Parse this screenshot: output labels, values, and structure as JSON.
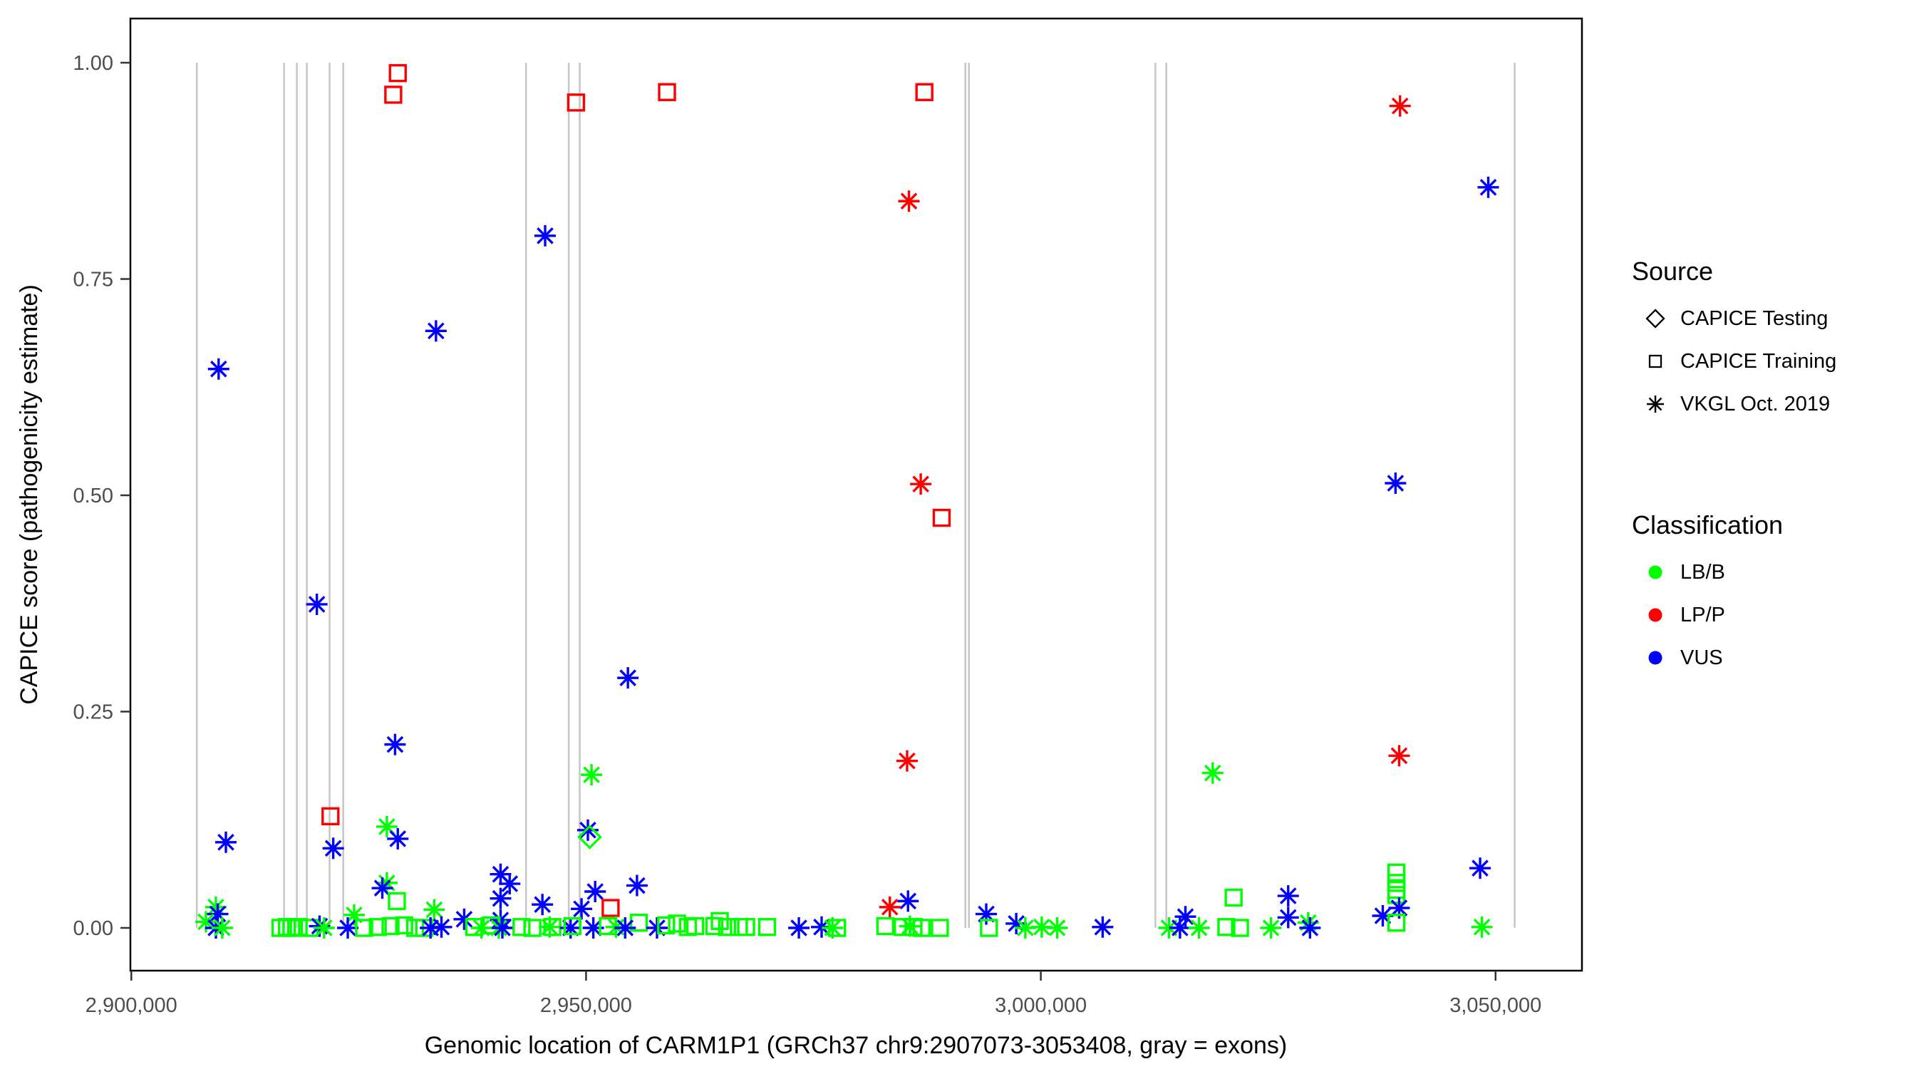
{
  "chart_data": {
    "type": "scatter",
    "xlabel": "Genomic location of CARM1P1 (GRCh37 chr9:2907073-3053408, gray = exons)",
    "ylabel": "CAPICE score (pathogenicity estimate)",
    "xlim": [
      2899900,
      3059500
    ],
    "ylim": [
      0,
      1
    ],
    "grid": "off",
    "x_ticks": [
      {
        "label": "2,900,000",
        "value": 2900000
      },
      {
        "label": "2,950,000",
        "value": 2950000
      },
      {
        "label": "3,000,000",
        "value": 3000000
      },
      {
        "label": "3,050,000",
        "value": 3050000
      }
    ],
    "y_ticks": [
      {
        "label": "0.00",
        "value": 0.0
      },
      {
        "label": "0.25",
        "value": 0.25
      },
      {
        "label": "0.50",
        "value": 0.5
      },
      {
        "label": "0.75",
        "value": 0.75
      },
      {
        "label": "1.00",
        "value": 1.0
      }
    ],
    "exon_line_positions": [
      2907200,
      2916800,
      2918200,
      2919300,
      2921800,
      2923300,
      2943400,
      2948100,
      2949300,
      2991700,
      2992100,
      3012600,
      3013800,
      3052100
    ],
    "exon_line_note": "gray vertical lines spanning score 0 to 1 mark exons",
    "marker_codes": {
      "T": "CAPICE Testing (open diamond)",
      "R": "CAPICE Training (open square)",
      "V": "VKGL Oct. 2019 (asterisk)"
    },
    "class_codes": {
      "B": "LB/B",
      "P": "LP/P",
      "U": "VUS"
    },
    "points_format": [
      "genomic_position",
      "capice_score",
      "marker_code",
      "class_code"
    ],
    "points": [
      [
        2929300,
        0.988,
        "R",
        "P"
      ],
      [
        2928800,
        0.963,
        "R",
        "P"
      ],
      [
        2948900,
        0.954,
        "R",
        "P"
      ],
      [
        2958900,
        0.966,
        "R",
        "P"
      ],
      [
        2987200,
        0.966,
        "R",
        "P"
      ],
      [
        3039500,
        0.95,
        "V",
        "P"
      ],
      [
        3049200,
        0.856,
        "V",
        "U"
      ],
      [
        2985500,
        0.84,
        "V",
        "P"
      ],
      [
        2945500,
        0.8,
        "V",
        "U"
      ],
      [
        2933500,
        0.69,
        "V",
        "U"
      ],
      [
        2909600,
        0.646,
        "V",
        "U"
      ],
      [
        3039000,
        0.514,
        "V",
        "U"
      ],
      [
        2986800,
        0.513,
        "V",
        "P"
      ],
      [
        2989100,
        0.474,
        "R",
        "P"
      ],
      [
        2920400,
        0.374,
        "V",
        "U"
      ],
      [
        2954600,
        0.289,
        "V",
        "U"
      ],
      [
        2929000,
        0.212,
        "V",
        "U"
      ],
      [
        3039400,
        0.199,
        "V",
        "P"
      ],
      [
        2985300,
        0.193,
        "V",
        "P"
      ],
      [
        3018900,
        0.179,
        "V",
        "B"
      ],
      [
        2950600,
        0.177,
        "V",
        "B"
      ],
      [
        2921900,
        0.129,
        "R",
        "P"
      ],
      [
        2928100,
        0.117,
        "V",
        "B"
      ],
      [
        2950200,
        0.113,
        "V",
        "U"
      ],
      [
        2950400,
        0.105,
        "T",
        "B"
      ],
      [
        2929300,
        0.103,
        "V",
        "U"
      ],
      [
        2910400,
        0.099,
        "V",
        "U"
      ],
      [
        2922200,
        0.092,
        "V",
        "U"
      ],
      [
        3048300,
        0.069,
        "V",
        "U"
      ],
      [
        3039100,
        0.064,
        "R",
        "B"
      ],
      [
        2940600,
        0.062,
        "V",
        "U"
      ],
      [
        2928100,
        0.052,
        "V",
        "B"
      ],
      [
        3039100,
        0.052,
        "R",
        "B"
      ],
      [
        2941600,
        0.051,
        "V",
        "U"
      ],
      [
        2955600,
        0.049,
        "V",
        "U"
      ],
      [
        2927600,
        0.046,
        "V",
        "U"
      ],
      [
        3039100,
        0.044,
        "R",
        "B"
      ],
      [
        2951000,
        0.042,
        "V",
        "U"
      ],
      [
        3039100,
        0.038,
        "R",
        "B"
      ],
      [
        3027200,
        0.037,
        "V",
        "U"
      ],
      [
        3021200,
        0.035,
        "R",
        "B"
      ],
      [
        2940600,
        0.034,
        "V",
        "U"
      ],
      [
        2985400,
        0.031,
        "V",
        "U"
      ],
      [
        2929200,
        0.031,
        "R",
        "B"
      ],
      [
        2945200,
        0.027,
        "V",
        "U"
      ],
      [
        2983400,
        0.024,
        "V",
        "P"
      ],
      [
        2909300,
        0.024,
        "V",
        "B"
      ],
      [
        2952700,
        0.023,
        "R",
        "P"
      ],
      [
        3039400,
        0.023,
        "V",
        "U"
      ],
      [
        2949500,
        0.022,
        "V",
        "U"
      ],
      [
        2933300,
        0.021,
        "V",
        "B"
      ],
      [
        2909500,
        0.016,
        "V",
        "U"
      ],
      [
        2994000,
        0.016,
        "V",
        "U"
      ],
      [
        2924500,
        0.015,
        "V",
        "B"
      ],
      [
        3037600,
        0.014,
        "V",
        "U"
      ],
      [
        3015900,
        0.013,
        "V",
        "U"
      ],
      [
        3027200,
        0.012,
        "V",
        "U"
      ],
      [
        2936600,
        0.01,
        "V",
        "U"
      ],
      [
        2940600,
        0.009,
        "V",
        "U"
      ],
      [
        2964700,
        0.008,
        "R",
        "B"
      ],
      [
        2908200,
        0.007,
        "V",
        "B"
      ],
      [
        2955800,
        0.006,
        "R",
        "B"
      ],
      [
        3029400,
        0.006,
        "V",
        "B"
      ],
      [
        3039100,
        0.006,
        "R",
        "B"
      ],
      [
        2997300,
        0.005,
        "V",
        "U"
      ],
      [
        2960000,
        0.005,
        "R",
        "B"
      ],
      [
        2909300,
        0.0,
        "V",
        "U"
      ],
      [
        2910000,
        0.0,
        "V",
        "B"
      ],
      [
        2916400,
        0.0,
        "R",
        "B"
      ],
      [
        2917100,
        0.001,
        "R",
        "B"
      ],
      [
        2917600,
        0.0,
        "R",
        "B"
      ],
      [
        2918400,
        0.001,
        "R",
        "B"
      ],
      [
        2919600,
        0.0,
        "R",
        "B"
      ],
      [
        2920700,
        0.002,
        "V",
        "U"
      ],
      [
        2921200,
        0.0,
        "V",
        "B"
      ],
      [
        2923800,
        0.0,
        "V",
        "U"
      ],
      [
        2925600,
        0.0,
        "R",
        "B"
      ],
      [
        2927100,
        0.001,
        "R",
        "B"
      ],
      [
        2928500,
        0.002,
        "R",
        "B"
      ],
      [
        2930000,
        0.003,
        "R",
        "B"
      ],
      [
        2931200,
        0.0,
        "R",
        "B"
      ],
      [
        2932200,
        0.0,
        "R",
        "B"
      ],
      [
        2932900,
        0.0,
        "V",
        "U"
      ],
      [
        2934100,
        0.001,
        "V",
        "U"
      ],
      [
        2937700,
        0.001,
        "R",
        "B"
      ],
      [
        2938500,
        0.0,
        "V",
        "B"
      ],
      [
        2939600,
        0.003,
        "R",
        "B"
      ],
      [
        2940400,
        0.0,
        "V",
        "B"
      ],
      [
        2940800,
        0.0,
        "V",
        "U"
      ],
      [
        2942900,
        0.001,
        "R",
        "B"
      ],
      [
        2944100,
        0.0,
        "R",
        "B"
      ],
      [
        2946000,
        0.001,
        "V",
        "B"
      ],
      [
        2946300,
        0.001,
        "R",
        "B"
      ],
      [
        2948300,
        0.0,
        "V",
        "U"
      ],
      [
        2948500,
        0.002,
        "R",
        "B"
      ],
      [
        2950800,
        0.0,
        "V",
        "U"
      ],
      [
        2952400,
        0.002,
        "R",
        "B"
      ],
      [
        2953300,
        0.001,
        "V",
        "B"
      ],
      [
        2954300,
        0.0,
        "V",
        "U"
      ],
      [
        2957800,
        0.0,
        "V",
        "U"
      ],
      [
        2958800,
        0.003,
        "R",
        "B"
      ],
      [
        2961200,
        0.001,
        "R",
        "B"
      ],
      [
        2962000,
        0.002,
        "R",
        "B"
      ],
      [
        2964100,
        0.002,
        "R",
        "B"
      ],
      [
        2965500,
        0.001,
        "R",
        "B"
      ],
      [
        2966800,
        0.001,
        "R",
        "B"
      ],
      [
        2967600,
        0.001,
        "R",
        "B"
      ],
      [
        2969900,
        0.001,
        "R",
        "B"
      ],
      [
        2973400,
        0.0,
        "V",
        "U"
      ],
      [
        2975900,
        0.001,
        "V",
        "U"
      ],
      [
        2977100,
        0.0,
        "V",
        "B"
      ],
      [
        2977600,
        0.0,
        "R",
        "B"
      ],
      [
        2982900,
        0.002,
        "R",
        "B"
      ],
      [
        2984800,
        0.001,
        "R",
        "B"
      ],
      [
        2985600,
        0.002,
        "V",
        "B"
      ],
      [
        2986000,
        0.001,
        "R",
        "B"
      ],
      [
        2986900,
        0.0,
        "R",
        "B"
      ],
      [
        2988900,
        0.0,
        "R",
        "B"
      ],
      [
        2994300,
        0.0,
        "R",
        "B"
      ],
      [
        2998300,
        0.0,
        "V",
        "B"
      ],
      [
        3000100,
        0.001,
        "V",
        "B"
      ],
      [
        3001800,
        0.0,
        "V",
        "B"
      ],
      [
        3006800,
        0.001,
        "V",
        "U"
      ],
      [
        3014100,
        0.0,
        "V",
        "B"
      ],
      [
        3015300,
        0.0,
        "V",
        "U"
      ],
      [
        3017400,
        0.0,
        "V",
        "B"
      ],
      [
        3020400,
        0.001,
        "R",
        "B"
      ],
      [
        3021900,
        0.0,
        "R",
        "B"
      ],
      [
        3025300,
        0.0,
        "V",
        "B"
      ],
      [
        3029600,
        0.0,
        "V",
        "U"
      ],
      [
        3048500,
        0.001,
        "V",
        "B"
      ]
    ],
    "colors": {
      "LB/B": "#00FF00",
      "LP/P": "#FF0000",
      "VUS": "#0000FF",
      "exon_line": "#C6C6C6",
      "panel_border": "#000000",
      "tick_text": "#4D4D4D"
    }
  },
  "legend": {
    "source": {
      "title": "Source",
      "items": [
        {
          "label": "CAPICE Testing",
          "marker": "T"
        },
        {
          "label": "CAPICE Training",
          "marker": "R"
        },
        {
          "label": "VKGL Oct. 2019",
          "marker": "V"
        }
      ]
    },
    "classification": {
      "title": "Classification",
      "items": [
        {
          "label": "LB/B",
          "color": "#00FF00"
        },
        {
          "label": "LP/P",
          "color": "#FF0000"
        },
        {
          "label": "VUS",
          "color": "#0000FF"
        }
      ]
    }
  }
}
